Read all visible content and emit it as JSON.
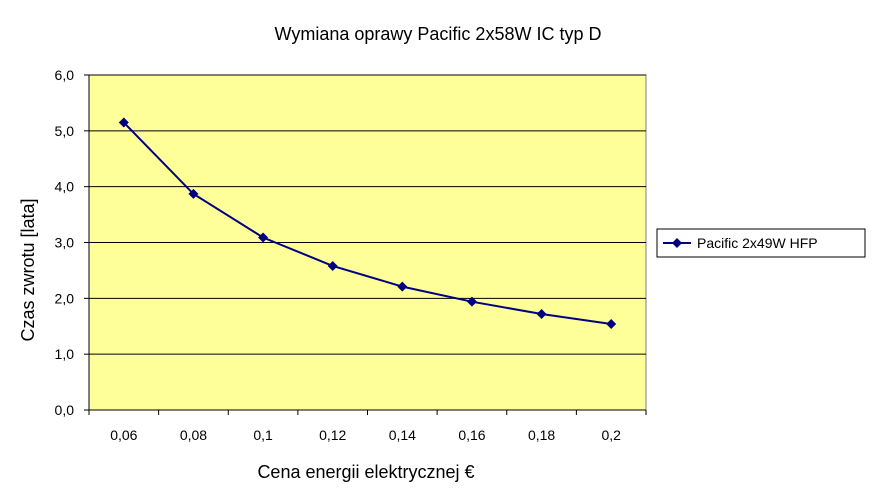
{
  "chart_data": {
    "type": "line",
    "title": "Wymiana oprawy Pacific 2x58W IC typ D",
    "xlabel": "Cena energii elektrycznej €",
    "ylabel": "Czas zwrotu [lata]",
    "categories": [
      "0,06",
      "0,08",
      "0,1",
      "0,12",
      "0,14",
      "0,16",
      "0,18",
      "0,2"
    ],
    "x": [
      0.06,
      0.08,
      0.1,
      0.12,
      0.14,
      0.16,
      0.18,
      0.2
    ],
    "series": [
      {
        "name": "Pacific 2x49W HFP",
        "values": [
          5.15,
          3.87,
          3.09,
          2.58,
          2.21,
          1.94,
          1.72,
          1.54
        ],
        "color": "#000080",
        "marker": "diamond"
      }
    ],
    "ylim": [
      0,
      6
    ],
    "yticks": [
      "0,0",
      "1,0",
      "2,0",
      "3,0",
      "4,0",
      "5,0",
      "6,0"
    ],
    "grid": true,
    "legend": "right",
    "plot_background": "#ffff99",
    "line_color": "#000080"
  }
}
